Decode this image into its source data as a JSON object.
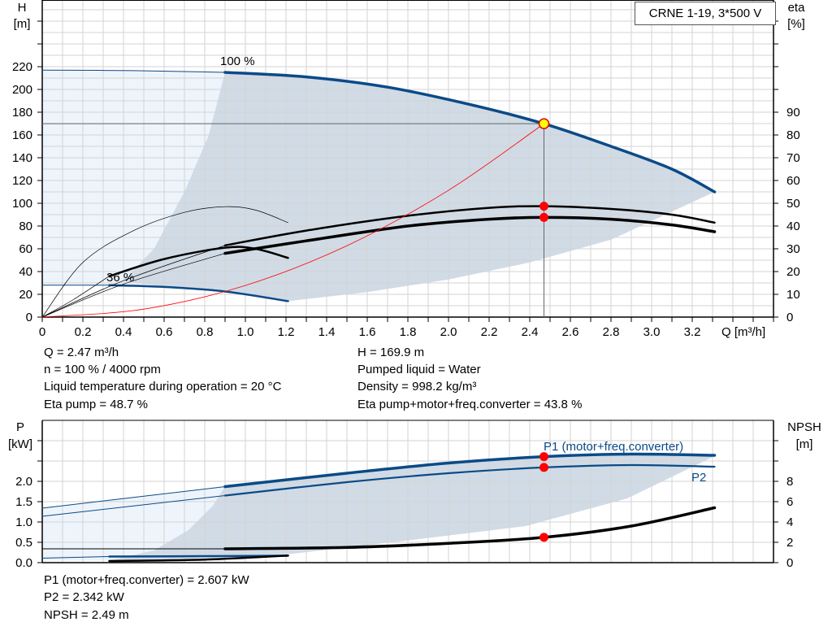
{
  "title": "CRNE 1-19, 3*500 V",
  "info_top": {
    "left": [
      "Q = 2.47 m³/h",
      "n = 100 % / 4000 rpm",
      "Liquid temperature during operation = 20 °C",
      "Eta pump = 48.7 %"
    ],
    "right": [
      "H = 169.9 m",
      "Pumped liquid = Water",
      "Density = 998.2 kg/m³",
      "Eta pump+motor+freq.converter = 43.8 %"
    ]
  },
  "info_bottom": [
    "P1 (motor+freq.converter) = 2.607 kW",
    "P2 = 2.342 kW",
    "NPSH = 2.49 m"
  ],
  "colors": {
    "curve_blue": "#0b4a87",
    "shade_dark": "#d0dbe6",
    "shade_light": "#edf4fb",
    "system_curve": "#ff0000",
    "duty_point": "#ffff00",
    "grid": "#d3d3d3"
  },
  "chart_data": [
    {
      "type": "line",
      "xlabel": "Q [m³/h]",
      "ylabel": "H\n[m]",
      "ylabel_right": "eta\n[%]",
      "xlim": [
        0,
        3.6
      ],
      "ylim": [
        0,
        278
      ],
      "ylim_right": [
        0,
        139
      ],
      "x_ticks": [
        "0",
        "0.2",
        "0.4",
        "0.6",
        "0.8",
        "1.0",
        "1.2",
        "1.4",
        "1.6",
        "1.8",
        "2.0",
        "2.2",
        "2.4",
        "2.6",
        "2.8",
        "3.0",
        "3.2"
      ],
      "y_ticks": [
        "0",
        "20",
        "40",
        "60",
        "80",
        "100",
        "120",
        "140",
        "160",
        "180",
        "200",
        "220"
      ],
      "y_ticks_right": [
        "0",
        "10",
        "20",
        "30",
        "40",
        "50",
        "60",
        "70",
        "80",
        "90"
      ],
      "grid": true,
      "annotations": [
        "100 %",
        "36 %"
      ],
      "series": [
        {
          "key": "h_100",
          "axis": "left",
          "points": [
            [
              0.9,
              215
            ],
            [
              1.3,
              211
            ],
            [
              1.7,
              202
            ],
            [
              2.1,
              187
            ],
            [
              2.47,
              169.9
            ],
            [
              2.8,
              150
            ],
            [
              3.1,
              130
            ],
            [
              3.31,
              110
            ]
          ]
        },
        {
          "key": "h_100_ext",
          "axis": "left",
          "points": [
            [
              0,
              217
            ],
            [
              0.45,
              216.5
            ],
            [
              0.9,
              215
            ]
          ]
        },
        {
          "key": "h_36",
          "axis": "left",
          "points": [
            [
              0.33,
              28
            ],
            [
              0.6,
              26.5
            ],
            [
              0.9,
              22.5
            ],
            [
              1.21,
              14
            ]
          ]
        },
        {
          "key": "h_36_ext",
          "axis": "left",
          "points": [
            [
              0,
              28
            ],
            [
              0.33,
              28
            ]
          ]
        },
        {
          "key": "eta_pump_100",
          "axis": "right",
          "points": [
            [
              0.9,
              31.5
            ],
            [
              1.3,
              38
            ],
            [
              1.8,
              44.5
            ],
            [
              2.2,
              48
            ],
            [
              2.47,
              48.7
            ],
            [
              2.8,
              47.5
            ],
            [
              3.1,
              45
            ],
            [
              3.31,
              41.5
            ]
          ]
        },
        {
          "key": "eta_total_100",
          "axis": "right",
          "points": [
            [
              0.9,
              28
            ],
            [
              1.3,
              33.5
            ],
            [
              1.8,
              40
            ],
            [
              2.2,
              43
            ],
            [
              2.47,
              43.8
            ],
            [
              2.8,
              43
            ],
            [
              3.1,
              40.5
            ],
            [
              3.31,
              37.5
            ]
          ]
        },
        {
          "key": "eta_pump_36_ext",
          "axis": "right",
          "points": [
            [
              0,
              0
            ],
            [
              0.2,
              24
            ],
            [
              0.45,
              38
            ],
            [
              0.7,
              46
            ],
            [
              0.9,
              48.5
            ],
            [
              1.05,
              47
            ],
            [
              1.21,
              41.5
            ]
          ]
        },
        {
          "key": "eta_total_36",
          "axis": "right",
          "points": [
            [
              0.33,
              18
            ],
            [
              0.6,
              25.5
            ],
            [
              0.9,
              30.5
            ],
            [
              1.05,
              30
            ],
            [
              1.21,
              26
            ]
          ]
        },
        {
          "key": "eta_total_36_ext",
          "axis": "right",
          "points": [
            [
              0,
              0
            ],
            [
              0.15,
              7.5
            ],
            [
              0.33,
              18
            ]
          ]
        },
        {
          "key": "eta_pump_100_ext",
          "axis": "right",
          "points": [
            [
              0,
              0
            ],
            [
              0.4,
              16
            ],
            [
              0.9,
              31.5
            ]
          ]
        },
        {
          "key": "eta_total_100_ext",
          "axis": "right",
          "points": [
            [
              0,
              0
            ],
            [
              0.4,
              14.5
            ],
            [
              0.9,
              28
            ]
          ]
        },
        {
          "key": "system_curve",
          "axis": "left",
          "points": [
            [
              0,
              0
            ],
            [
              0.5,
              7
            ],
            [
              1.0,
              27.8
            ],
            [
              1.5,
              62.7
            ],
            [
              2.0,
              111.4
            ],
            [
              2.47,
              169.9
            ]
          ]
        }
      ],
      "duty_point": {
        "q": 2.47,
        "h": 169.9,
        "eta_pump": 48.7,
        "eta_total": 43.8
      }
    },
    {
      "type": "line",
      "xlim": [
        0,
        3.6
      ],
      "ylabel": "P\n[kW]",
      "ylabel_right": "NPSH\n[m]",
      "ylim": [
        0,
        3.5
      ],
      "ylim_right": [
        0,
        14
      ],
      "y_ticks": [
        "0.0",
        "0.5",
        "1.0",
        "1.5",
        "2.0"
      ],
      "y_ticks_right": [
        "0",
        "2",
        "4",
        "6",
        "8"
      ],
      "grid": true,
      "series": [
        {
          "key": "p1_100",
          "name": "P1 (motor+freq.converter)",
          "axis": "left",
          "points": [
            [
              0.9,
              1.87
            ],
            [
              1.5,
              2.2
            ],
            [
              2.0,
              2.45
            ],
            [
              2.47,
              2.607
            ],
            [
              2.9,
              2.67
            ],
            [
              3.31,
              2.64
            ]
          ]
        },
        {
          "key": "p2_100",
          "name": "P2",
          "axis": "left",
          "points": [
            [
              0.9,
              1.65
            ],
            [
              1.5,
              1.98
            ],
            [
              2.0,
              2.2
            ],
            [
              2.47,
              2.342
            ],
            [
              2.9,
              2.4
            ],
            [
              3.31,
              2.36
            ]
          ]
        },
        {
          "key": "p1_ext",
          "axis": "left",
          "points": [
            [
              0,
              1.34
            ],
            [
              0.9,
              1.87
            ]
          ]
        },
        {
          "key": "p2_ext",
          "axis": "left",
          "points": [
            [
              0,
              1.14
            ],
            [
              0.9,
              1.65
            ]
          ]
        },
        {
          "key": "npsh_100",
          "axis": "right",
          "points": [
            [
              0.9,
              1.36
            ],
            [
              1.5,
              1.5
            ],
            [
              2.0,
              1.9
            ],
            [
              2.47,
              2.49
            ],
            [
              2.9,
              3.6
            ],
            [
              3.31,
              5.4
            ]
          ]
        },
        {
          "key": "npsh_ext",
          "axis": "right",
          "points": [
            [
              0,
              1.36
            ],
            [
              0.9,
              1.36
            ]
          ]
        },
        {
          "key": "p_36",
          "axis": "left",
          "points": [
            [
              0.33,
              0.15
            ],
            [
              0.8,
              0.16
            ],
            [
              1.21,
              0.17
            ]
          ]
        },
        {
          "key": "p_36_ext",
          "axis": "left",
          "points": [
            [
              0,
              0.11
            ],
            [
              0.33,
              0.15
            ]
          ]
        },
        {
          "key": "npsh_36",
          "axis": "right",
          "points": [
            [
              0.33,
              0.16
            ],
            [
              0.8,
              0.3
            ],
            [
              1.21,
              0.7
            ]
          ]
        }
      ],
      "duty_point": {
        "q": 2.47,
        "p1": 2.607,
        "p2": 2.342,
        "npsh": 2.49
      }
    }
  ]
}
